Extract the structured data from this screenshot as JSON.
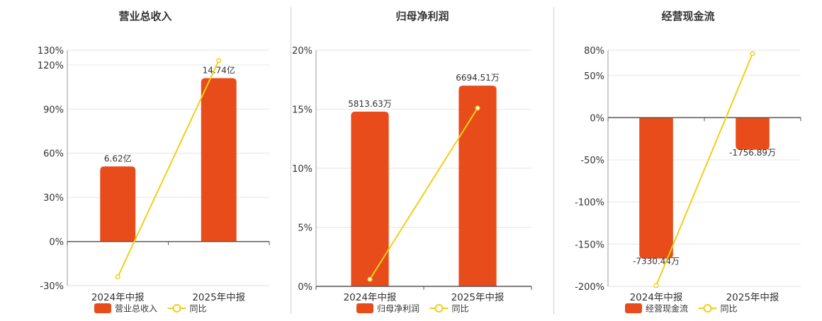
{
  "colors": {
    "bar": "#e84c1a",
    "line": "#f2cf16",
    "axis": "#555555",
    "grid": "#e6e6e6",
    "text": "#333333"
  },
  "chart_data": [
    {
      "type": "bar",
      "title": "营业总收入",
      "categories": [
        "2024年中报",
        "2025年中报"
      ],
      "bar_series": {
        "name": "营业总收入",
        "values": [
          51,
          111
        ],
        "labels": [
          "6.62亿",
          "14.74亿"
        ]
      },
      "line_series": {
        "name": "同比",
        "values": [
          -24,
          123
        ]
      },
      "ylim": [
        -30,
        130
      ],
      "yticks": [
        -30,
        0,
        30,
        60,
        90,
        120,
        130
      ],
      "ytick_labels": [
        "-30%",
        "0%",
        "30%",
        "60%",
        "90%",
        "120%",
        "130%"
      ],
      "zero_line": true
    },
    {
      "type": "bar",
      "title": "归母净利润",
      "categories": [
        "2024年中报",
        "2025年中报"
      ],
      "bar_series": {
        "name": "归母净利润",
        "values": [
          14.8,
          17
        ],
        "labels": [
          "5813.63万",
          "6694.51万"
        ]
      },
      "line_series": {
        "name": "同比",
        "values": [
          0.6,
          15.1
        ]
      },
      "ylim": [
        0,
        20
      ],
      "yticks": [
        0,
        5,
        10,
        15,
        20
      ],
      "ytick_labels": [
        "0%",
        "5%",
        "10%",
        "15%",
        "20%"
      ],
      "zero_line": false
    },
    {
      "type": "bar",
      "title": "经营现金流",
      "categories": [
        "2024年中报",
        "2025年中报"
      ],
      "bar_series": {
        "name": "经营现金流",
        "values": [
          -167,
          -38
        ],
        "labels": [
          "-7330.44万",
          "-1756.89万"
        ]
      },
      "line_series": {
        "name": "同比",
        "values": [
          -199,
          76
        ]
      },
      "ylim": [
        -200,
        80
      ],
      "yticks": [
        -200,
        -150,
        -100,
        -50,
        0,
        50,
        80
      ],
      "ytick_labels": [
        "-200%",
        "-150%",
        "-100%",
        "-50%",
        "0%",
        "50%",
        "80%"
      ],
      "zero_line": true
    }
  ]
}
